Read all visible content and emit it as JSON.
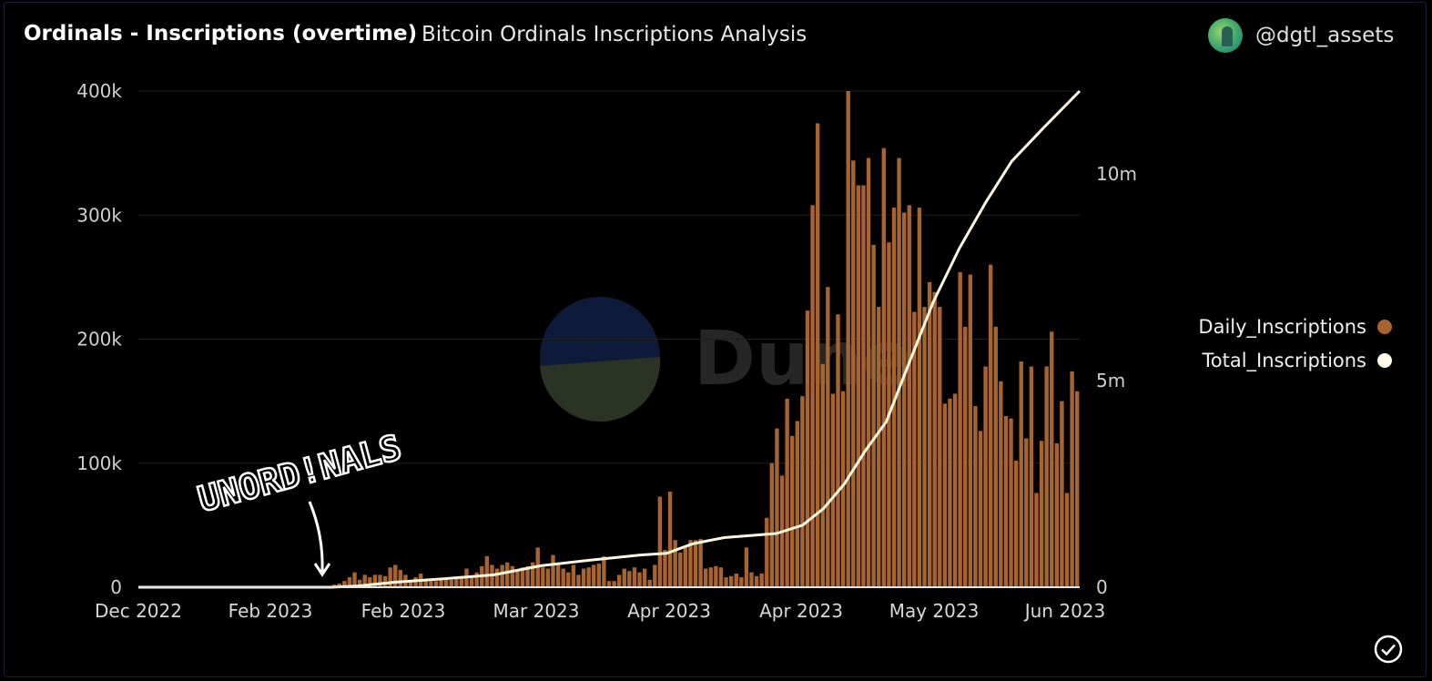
{
  "header": {
    "title": "Ordinals - Inscriptions (overtime)",
    "subtitle": "Bitcoin Ordinals Inscriptions Analysis",
    "author": "@dgtl_assets"
  },
  "watermark": {
    "text": "Dune"
  },
  "annotation": {
    "text": "UNORD!NALS"
  },
  "colors": {
    "daily": "#a8642f",
    "total": "#fff8e0",
    "accent_dot_total": "#fffbe6"
  },
  "chart_data": {
    "type": "bar",
    "x_tick_labels": [
      "Dec 2022",
      "Feb 2023",
      "Feb 2023",
      "Mar 2023",
      "Apr 2023",
      "Apr 2023",
      "May 2023",
      "Jun 2023"
    ],
    "y_left_ticks": [
      "0",
      "100k",
      "200k",
      "300k",
      "400k"
    ],
    "y_right_ticks": [
      "0",
      "5m",
      "10m"
    ],
    "ylim_left": [
      0,
      400000
    ],
    "ylim_right": [
      0,
      12000000
    ],
    "legend_position": "right",
    "series": [
      {
        "name": "Daily_Inscriptions",
        "kind": "bar",
        "axis": "left",
        "values": [
          0,
          0,
          0,
          0,
          0,
          0,
          0,
          0,
          0,
          0,
          0,
          0,
          0,
          0,
          0,
          0,
          0,
          0,
          0,
          0,
          0,
          0,
          0,
          0,
          0,
          0,
          0,
          0,
          0,
          0,
          0,
          0,
          0,
          0,
          0,
          0,
          0,
          1000,
          2000,
          3000,
          5000,
          8000,
          12000,
          6000,
          10000,
          8000,
          10000,
          10000,
          9000,
          16000,
          18000,
          14000,
          10000,
          6000,
          8000,
          11000,
          5000,
          5000,
          5000,
          6000,
          7000,
          6000,
          7000,
          8000,
          15000,
          8000,
          12000,
          17000,
          25000,
          18000,
          15000,
          18000,
          20000,
          17000,
          14000,
          16000,
          17000,
          20000,
          32000,
          16000,
          15000,
          26000,
          18000,
          15000,
          12000,
          18000,
          10000,
          15000,
          16000,
          18000,
          19000,
          25000,
          5000,
          5000,
          10000,
          15000,
          13000,
          16000,
          12000,
          15000,
          6000,
          18000,
          73000,
          30000,
          77000,
          38000,
          28000,
          32000,
          38000,
          38000,
          39000,
          15000,
          16000,
          17000,
          16000,
          8000,
          9000,
          11000,
          8000,
          32000,
          12000,
          9000,
          11000,
          56000,
          100000,
          128000,
          90000,
          152000,
          122000,
          134000,
          154000,
          223000,
          308000,
          374000,
          180000,
          242000,
          156000,
          220000,
          158000,
          400000,
          344000,
          324000,
          324000,
          346000,
          276000,
          226000,
          354000,
          278000,
          306000,
          346000,
          302000,
          308000,
          222000,
          306000,
          226000,
          246000,
          238000,
          226000,
          148000,
          152000,
          156000,
          254000,
          210000,
          252000,
          146000,
          126000,
          178000,
          260000,
          210000,
          166000,
          138000,
          136000,
          102000,
          182000,
          120000,
          178000,
          76000,
          118000,
          178000,
          206000,
          116000,
          150000,
          76000,
          174000,
          158000
        ],
        "description_note_omitted": ""
      },
      {
        "name": "Total_Inscriptions",
        "kind": "line",
        "axis": "right",
        "points": [
          [
            "2022-12-14",
            0
          ],
          [
            "2023-01-20",
            0
          ],
          [
            "2023-01-25",
            30000
          ],
          [
            "2023-02-01",
            120000
          ],
          [
            "2023-02-10",
            200000
          ],
          [
            "2023-02-20",
            300000
          ],
          [
            "2023-03-01",
            520000
          ],
          [
            "2023-03-10",
            650000
          ],
          [
            "2023-03-20",
            780000
          ],
          [
            "2023-03-25",
            820000
          ],
          [
            "2023-03-30",
            1050000
          ],
          [
            "2023-04-05",
            1200000
          ],
          [
            "2023-04-15",
            1300000
          ],
          [
            "2023-04-20",
            1500000
          ],
          [
            "2023-04-24",
            1900000
          ],
          [
            "2023-04-28",
            2500000
          ],
          [
            "2023-05-02",
            3300000
          ],
          [
            "2023-05-06",
            4000000
          ],
          [
            "2023-05-10",
            5300000
          ],
          [
            "2023-05-15",
            6900000
          ],
          [
            "2023-05-20",
            8200000
          ],
          [
            "2023-05-25",
            9300000
          ],
          [
            "2023-05-30",
            10300000
          ],
          [
            "2023-06-05",
            11100000
          ],
          [
            "2023-06-12",
            12000000
          ]
        ]
      }
    ]
  }
}
